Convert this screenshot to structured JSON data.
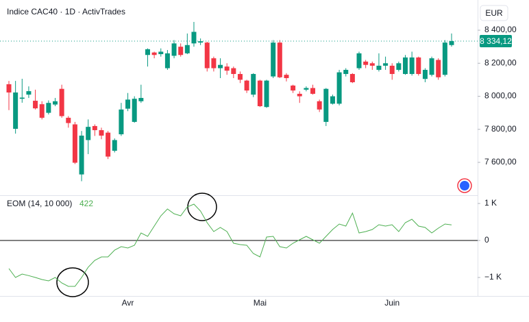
{
  "chart_data": [
    {
      "type": "candlestick",
      "title": "Indice CAC40 · 1D · ActivTrades",
      "currency": "EUR",
      "categories": [
        null,
        null,
        null,
        null,
        null,
        null,
        null,
        null,
        null,
        null,
        null,
        null,
        null,
        null,
        null,
        null,
        null,
        null,
        "Avr",
        null,
        null,
        null,
        null,
        null,
        null,
        null,
        null,
        null,
        null,
        null,
        null,
        null,
        null,
        null,
        null,
        null,
        null,
        null,
        "Mai",
        null,
        null,
        null,
        null,
        null,
        null,
        null,
        null,
        null,
        null,
        null,
        null,
        null,
        null,
        null,
        null,
        null,
        null,
        null,
        "Juin",
        null,
        null,
        null,
        null,
        null,
        null,
        null,
        null,
        null
      ],
      "open": [
        8073,
        7803,
        7985,
        8010,
        7973,
        7952,
        7900,
        7950,
        8045,
        7870,
        7830,
        7527,
        7735,
        7820,
        7795,
        7780,
        7670,
        7770,
        7925,
        7845,
        7970,
        8250,
        8265,
        8255,
        8170,
        8245,
        8300,
        8260,
        8320,
        8325,
        8325,
        8230,
        8170,
        8180,
        8170,
        8135,
        8095,
        8010,
        8095,
        7935,
        8120,
        8325,
        8130,
        8065,
        8015,
        8040,
        8050,
        7970,
        7845,
        7955,
        7955,
        8135,
        8135,
        8170,
        8210,
        8200,
        8160,
        8185,
        8185,
        8160,
        8135,
        8135,
        8235,
        8105,
        8130,
        8220,
        8130,
        8310
      ],
      "high": [
        8093,
        8093,
        8106,
        8060,
        8040,
        7970,
        7975,
        7990,
        8070,
        7880,
        7845,
        7790,
        7860,
        7830,
        7810,
        7790,
        7745,
        7960,
        8020,
        8000,
        8070,
        8290,
        8270,
        8290,
        8280,
        8340,
        8320,
        8380,
        8450,
        8350,
        8330,
        8240,
        8230,
        8200,
        8180,
        8150,
        8100,
        8140,
        8100,
        8100,
        8340,
        8340,
        8140,
        8070,
        8030,
        8060,
        8070,
        7980,
        8050,
        8010,
        8160,
        8170,
        8140,
        8270,
        8220,
        8210,
        8260,
        8240,
        8200,
        8210,
        8250,
        8270,
        8240,
        8170,
        8240,
        8230,
        8340,
        8380
      ],
      "low": [
        7916,
        7774,
        7961,
        7990,
        7920,
        7860,
        7890,
        7940,
        7870,
        7810,
        7590,
        7486,
        7650,
        7760,
        7740,
        7620,
        7660,
        7760,
        7910,
        7840,
        7960,
        8180,
        8230,
        8240,
        8160,
        8230,
        8240,
        8255,
        8300,
        8310,
        8150,
        8150,
        8110,
        8130,
        8110,
        8080,
        8020,
        7995,
        7935,
        7930,
        8110,
        8110,
        8090,
        8020,
        7960,
        8030,
        8010,
        7905,
        7820,
        7950,
        7945,
        8120,
        8080,
        8160,
        8170,
        8160,
        8150,
        8160,
        8100,
        8150,
        8130,
        8125,
        8125,
        8085,
        8120,
        8100,
        8120,
        8300
      ],
      "close": [
        8023,
        8023,
        7992,
        8031,
        7927,
        7870,
        7960,
        7970,
        7880,
        7838,
        7598,
        7762,
        7815,
        7795,
        7762,
        7635,
        7735,
        7920,
        7980,
        7985,
        7990,
        8285,
        8250,
        8270,
        8260,
        8320,
        8250,
        8310,
        8390,
        8333,
        8170,
        8170,
        8190,
        8155,
        8135,
        8100,
        8035,
        8135,
        7940,
        8095,
        8325,
        8115,
        8110,
        8035,
        8000,
        8050,
        8015,
        7920,
        8045,
        8000,
        8145,
        8160,
        8085,
        8260,
        8190,
        8185,
        8185,
        8200,
        8135,
        8200,
        8235,
        8235,
        8135,
        8160,
        8230,
        8115,
        8325,
        8334.12
      ],
      "up_color": "#089981",
      "down_color": "#f23645",
      "ylim": [
        7401,
        8562
      ],
      "yticks": [
        {
          "value": 8400,
          "label": "8 400,00"
        },
        {
          "value": 8200,
          "label": "8 200,00"
        },
        {
          "value": 8000,
          "label": "8 000,00"
        },
        {
          "value": 7800,
          "label": "7 800,00"
        },
        {
          "value": 7600,
          "label": "7 600,00"
        }
      ],
      "price_tag": {
        "value": 8334.12,
        "label": "8 334,12"
      }
    },
    {
      "type": "line",
      "title": "EOM (14, 10 000)",
      "series": [
        {
          "color": "#4caf50",
          "values": [
            -759,
            -1000,
            -907,
            -950,
            -1000,
            -1056,
            -1093,
            -1000,
            -1148,
            -1241,
            -1241,
            -1000,
            -722,
            -537,
            -444,
            -444,
            -259,
            -167,
            -204,
            -130,
            204,
            111,
            389,
            667,
            852,
            722,
            667,
            907,
            981,
            796,
            481,
            241,
            352,
            241,
            -74,
            -111,
            -130,
            -352,
            -444,
            93,
            111,
            -167,
            -204,
            -74,
            19,
            111,
            19,
            -74,
            111,
            296,
            444,
            389,
            741,
            204,
            241,
            296,
            426,
            389,
            426,
            241,
            481,
            574,
            389,
            352,
            204,
            333,
            444,
            422
          ]
        }
      ],
      "ylim": [
        -1500,
        1222
      ],
      "yticks": [
        {
          "value": 1000,
          "label": "1 K"
        },
        0,
        {
          "value": -1000,
          "label": "−1 K"
        }
      ],
      "zero_line": true
    }
  ]
}
